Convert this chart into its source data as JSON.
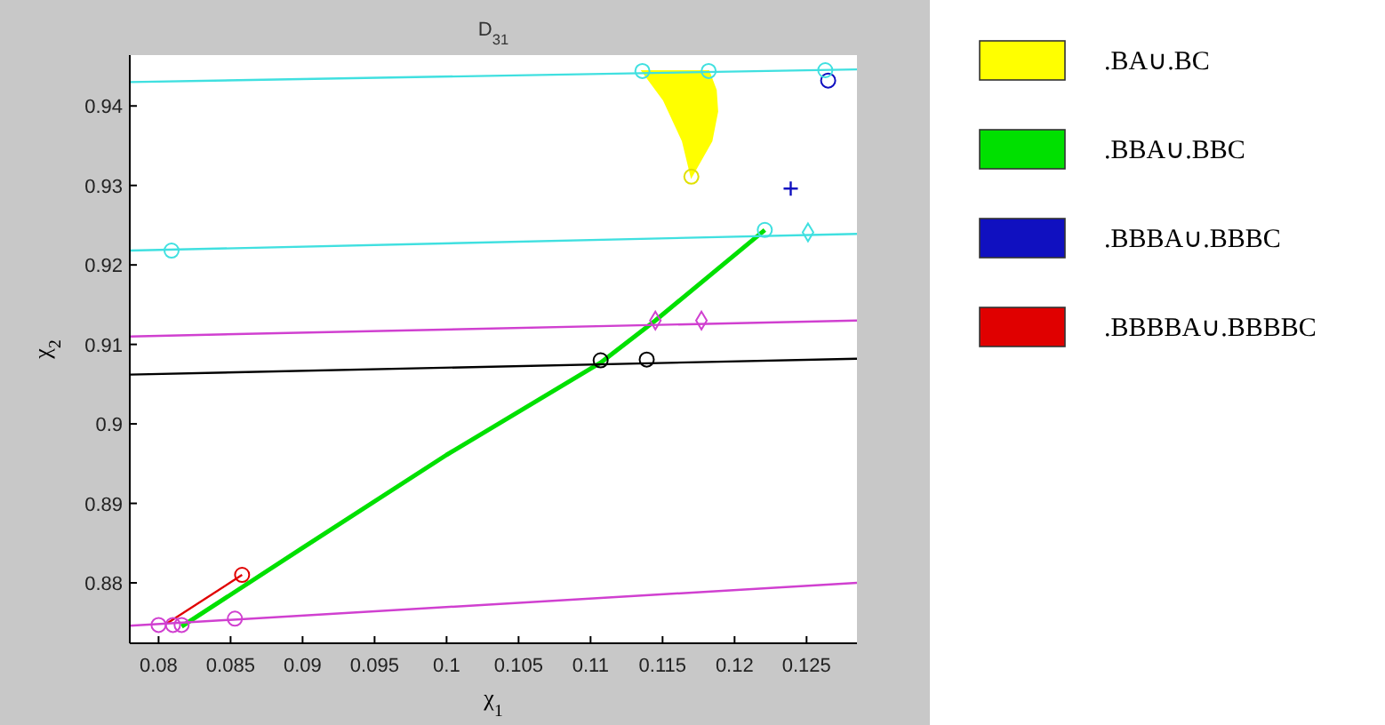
{
  "chart_data": {
    "type": "line",
    "title": "D$_{31}$",
    "xlabel": "χ$_{1}$",
    "ylabel": "χ$_{2}$",
    "xlim": [
      0.078,
      0.1285
    ],
    "ylim": [
      0.8724,
      0.9464
    ],
    "xticks": [
      0.08,
      0.085,
      0.09,
      0.095,
      0.1,
      0.105,
      0.11,
      0.115,
      0.12,
      0.125
    ],
    "yticks": [
      0.88,
      0.89,
      0.9,
      0.91,
      0.92,
      0.93,
      0.94
    ],
    "grid": false,
    "legend": "right",
    "marker": "none",
    "series": [
      {
        "type": "area",
        "name": ".BA∪.BC",
        "color": "#ffff00",
        "x": [
          0.1136,
          0.1182,
          0.1187,
          0.1188,
          0.1184,
          0.117,
          0.1164,
          0.1151
        ],
        "values": [
          0.9444,
          0.9444,
          0.942,
          0.9393,
          0.9356,
          0.9311,
          0.9356,
          0.9407
        ]
      },
      {
        "name": ".BBA∪.BBC",
        "color": "#00e000",
        "x": [
          0.0816,
          0.09,
          0.1,
          0.1107,
          0.1145,
          0.1221
        ],
        "values": [
          0.8745,
          0.8844,
          0.8961,
          0.9077,
          0.913,
          0.9244
        ]
      },
      {
        "type": "scatter",
        "name": ".BBBA∪.BBBC",
        "color": "#1010c0",
        "marker": "cross",
        "x": [
          0.1239
        ],
        "values": [
          0.9296
        ]
      },
      {
        "name": ".BBBBA∪.BBBBC",
        "color": "#e00000",
        "x": [
          0.0805,
          0.0858
        ],
        "values": [
          0.8748,
          0.881
        ]
      },
      {
        "type": "scatter",
        "color": "#e00000",
        "marker": "circle",
        "x": [
          0.0858
        ],
        "values": [
          0.881
        ]
      },
      {
        "type": "scatter",
        "color": "#e0e000",
        "marker": "circle",
        "x": [
          0.117
        ],
        "values": [
          0.9311
        ]
      },
      {
        "type": "scatter",
        "color": "#1010c0",
        "marker": "circle",
        "x": [
          0.1265
        ],
        "values": [
          0.9432
        ]
      },
      {
        "color": "#40e0e0",
        "x": [
          0.078,
          0.1285
        ],
        "values": [
          0.943,
          0.9446
        ]
      },
      {
        "type": "scatter",
        "color": "#40e0e0",
        "marker": "circle",
        "x": [
          0.1136,
          0.1182,
          0.1263
        ],
        "values": [
          0.9444,
          0.9444,
          0.9445
        ]
      },
      {
        "color": "#40e0e0",
        "x": [
          0.078,
          0.1285
        ],
        "values": [
          0.9218,
          0.9239
        ]
      },
      {
        "type": "scatter",
        "color": "#40e0e0",
        "marker": "circle",
        "x": [
          0.0809,
          0.1221
        ],
        "values": [
          0.9218,
          0.9244
        ]
      },
      {
        "type": "scatter",
        "color": "#40e0e0",
        "marker": "diamond",
        "x": [
          0.1251
        ],
        "values": [
          0.9241
        ]
      },
      {
        "color": "#d040d0",
        "x": [
          0.078,
          0.1285
        ],
        "values": [
          0.911,
          0.913
        ]
      },
      {
        "type": "scatter",
        "color": "#d040d0",
        "marker": "diamond",
        "x": [
          0.1145,
          0.1177
        ],
        "values": [
          0.913,
          0.913
        ]
      },
      {
        "color": "#000000",
        "x": [
          0.078,
          0.1285
        ],
        "values": [
          0.9062,
          0.9082
        ]
      },
      {
        "type": "scatter",
        "color": "#000000",
        "marker": "circle",
        "x": [
          0.1107,
          0.1139
        ],
        "values": [
          0.908,
          0.9081
        ]
      },
      {
        "color": "#d040d0",
        "x": [
          0.078,
          0.1285
        ],
        "values": [
          0.8746,
          0.88
        ]
      },
      {
        "type": "scatter",
        "color": "#d040d0",
        "marker": "circle",
        "x": [
          0.08,
          0.081,
          0.0816,
          0.0853
        ],
        "values": [
          0.8747,
          0.8747,
          0.8747,
          0.8755
        ]
      }
    ]
  }
}
